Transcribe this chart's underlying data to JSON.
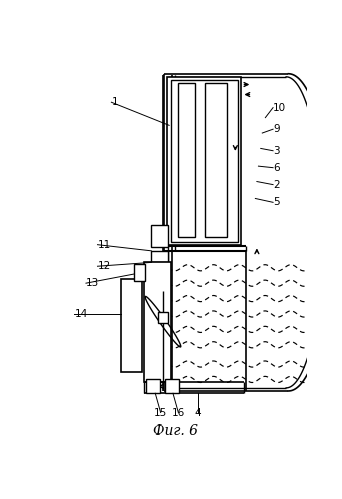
{
  "title": "Фиг. 6",
  "background_color": "#ffffff",
  "line_color": "#000000",
  "lw": 1.0
}
